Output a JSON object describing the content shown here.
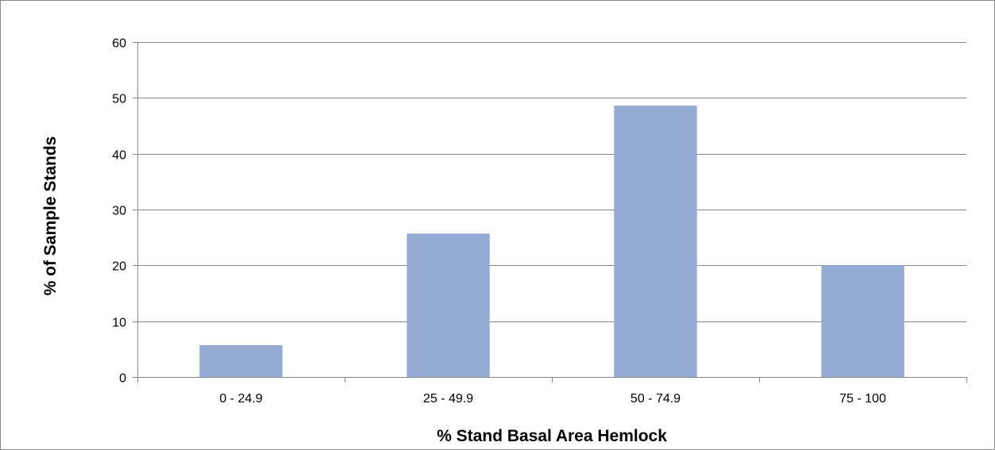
{
  "chart_data": {
    "type": "bar",
    "title": "",
    "xlabel": "% Stand Basal Area Hemlock",
    "ylabel": "% of Sample Stands",
    "categories": [
      "0 - 24.9",
      "25 - 49.9",
      "50 - 74.9",
      "75 - 100"
    ],
    "values": [
      5.7,
      25.7,
      48.6,
      20.0
    ],
    "ylim": [
      0,
      60
    ],
    "yticks": [
      0,
      10,
      20,
      30,
      40,
      50,
      60
    ],
    "grid": true,
    "legend": "none",
    "bar_color": "#95abd3",
    "grid_color": "#878787"
  }
}
